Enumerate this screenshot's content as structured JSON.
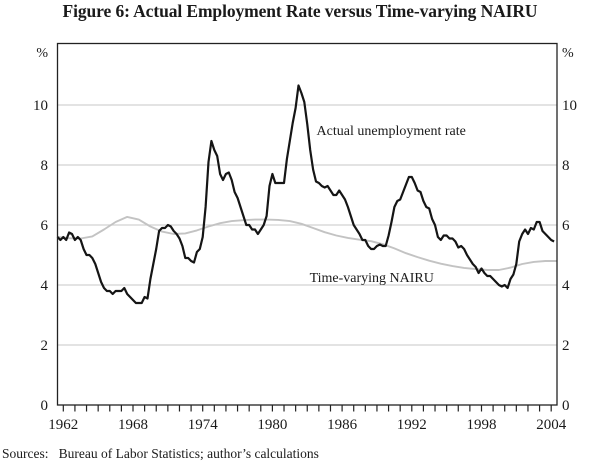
{
  "figure": {
    "title": "Figure 6: Actual Employment Rate versus Time-varying NAIRU",
    "sources": "Sources:   Bureau of Labor Statistics; author’s calculations"
  },
  "chart_data": {
    "type": "line",
    "title": "Figure 6: Actual Employment Rate versus Time-varying NAIRU",
    "xlabel": "",
    "ylabel_left": "%",
    "ylabel_right": "%",
    "xlim": [
      1962,
      2005
    ],
    "ylim": [
      0,
      12.05
    ],
    "yticks": [
      0,
      2,
      4,
      6,
      8,
      10
    ],
    "x_labeled_years": [
      1962,
      1968,
      1974,
      1980,
      1986,
      1992,
      1998,
      2004
    ],
    "x_minor_tick_interval": 1,
    "grid": "horizontal-on",
    "legend_position": "inline-annotations",
    "colors": {
      "unemployment_line": "#151515",
      "nairu_line": "#c3c3c3",
      "gridline": "#d2d2d2",
      "frame": "#222222"
    },
    "series": [
      {
        "name": "Time-varying NAIRU",
        "key": "nairu",
        "start": 1962,
        "step": 1,
        "label": {
          "text": "Time-varying NAIRU",
          "t": 1983.7,
          "v": 4.1,
          "anchor": "start"
        },
        "values": [
          5.6,
          5.56,
          5.55,
          5.62,
          5.85,
          6.1,
          6.27,
          6.18,
          5.95,
          5.78,
          5.7,
          5.72,
          5.82,
          5.95,
          6.06,
          6.13,
          6.16,
          6.18,
          6.18,
          6.17,
          6.13,
          6.04,
          5.9,
          5.76,
          5.65,
          5.57,
          5.51,
          5.46,
          5.36,
          5.22,
          5.06,
          4.93,
          4.81,
          4.71,
          4.63,
          4.57,
          4.53,
          4.5,
          4.5,
          4.58,
          4.7,
          4.77,
          4.8,
          4.8
        ]
      },
      {
        "name": "Actual unemployment rate",
        "key": "unemployment",
        "start": 1962,
        "step": 0.25,
        "label": {
          "text": "Actual unemployment rate",
          "t": 1984.3,
          "v": 9.0,
          "anchor": "start"
        },
        "values": [
          5.6,
          5.5,
          5.6,
          5.5,
          5.75,
          5.7,
          5.5,
          5.6,
          5.5,
          5.2,
          5.0,
          5.0,
          4.9,
          4.7,
          4.4,
          4.1,
          3.9,
          3.8,
          3.8,
          3.7,
          3.8,
          3.8,
          3.8,
          3.9,
          3.7,
          3.6,
          3.5,
          3.4,
          3.4,
          3.4,
          3.6,
          3.55,
          4.2,
          4.7,
          5.2,
          5.8,
          5.9,
          5.9,
          6.0,
          5.95,
          5.8,
          5.7,
          5.55,
          5.3,
          4.9,
          4.9,
          4.8,
          4.75,
          5.1,
          5.2,
          5.6,
          6.6,
          8.1,
          8.8,
          8.5,
          8.3,
          7.7,
          7.5,
          7.7,
          7.75,
          7.5,
          7.1,
          6.9,
          6.6,
          6.3,
          6.0,
          6.0,
          5.85,
          5.85,
          5.7,
          5.85,
          6.0,
          6.3,
          7.3,
          7.7,
          7.4,
          7.4,
          7.4,
          7.4,
          8.2,
          8.8,
          9.4,
          9.9,
          10.65,
          10.4,
          10.1,
          9.35,
          8.5,
          7.85,
          7.45,
          7.4,
          7.3,
          7.25,
          7.3,
          7.15,
          7.0,
          7.0,
          7.15,
          7.0,
          6.85,
          6.6,
          6.3,
          6.0,
          5.85,
          5.7,
          5.5,
          5.5,
          5.3,
          5.2,
          5.2,
          5.3,
          5.35,
          5.3,
          5.3,
          5.65,
          6.1,
          6.6,
          6.8,
          6.85,
          7.1,
          7.35,
          7.6,
          7.6,
          7.4,
          7.15,
          7.1,
          6.8,
          6.6,
          6.55,
          6.2,
          6.0,
          5.6,
          5.5,
          5.65,
          5.65,
          5.55,
          5.55,
          5.45,
          5.25,
          5.3,
          5.2,
          5.0,
          4.85,
          4.7,
          4.6,
          4.4,
          4.55,
          4.4,
          4.3,
          4.3,
          4.2,
          4.1,
          4.0,
          3.95,
          4.0,
          3.9,
          4.2,
          4.35,
          4.7,
          5.45,
          5.7,
          5.85,
          5.7,
          5.9,
          5.85,
          6.1,
          6.1,
          5.8,
          5.7,
          5.6,
          5.5,
          5.45
        ]
      }
    ]
  }
}
